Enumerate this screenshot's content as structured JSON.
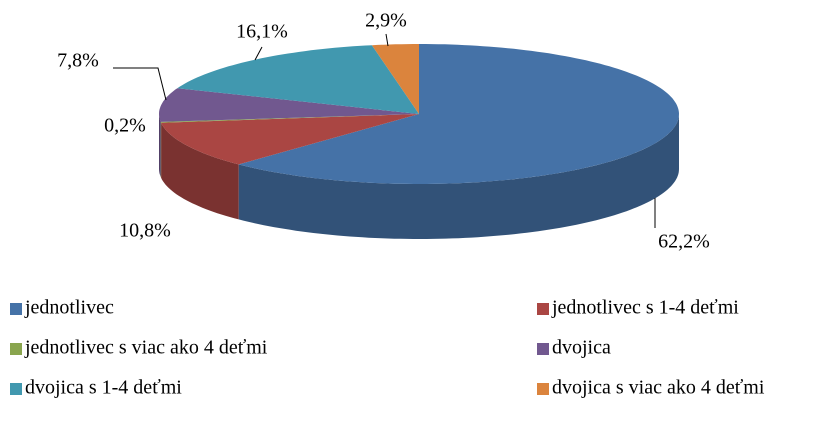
{
  "chart_data": {
    "type": "pie3d",
    "categories": [
      "jednotlivec",
      "jednotlivec s 1-4 deťmi",
      "jednotlivec s viac ako 4 deťmi",
      "dvojica",
      "dvojica s 1-4 deťmi",
      "dvojica s viac ako 4 deťmi"
    ],
    "values": [
      62.2,
      10.8,
      0.2,
      7.8,
      16.1,
      2.9
    ],
    "value_labels": [
      "62,2%",
      "10,8%",
      "0,2%",
      "7,8%",
      "16,1%",
      "2,9%"
    ],
    "colors": [
      "#4572a7",
      "#aa4643",
      "#89a54e",
      "#71588f",
      "#4198af",
      "#db843d"
    ],
    "legend": "bottom"
  }
}
